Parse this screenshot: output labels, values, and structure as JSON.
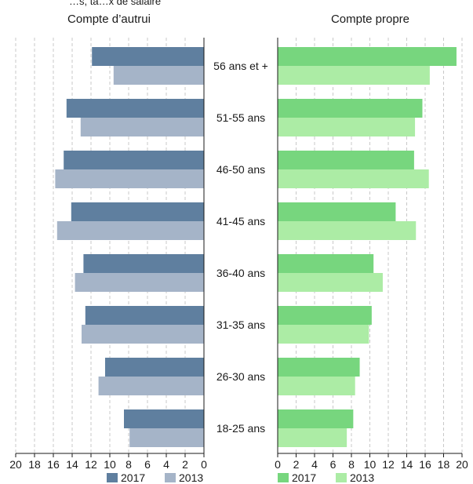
{
  "clipped_header": "…s, ta…x de salaire",
  "chart_data": [
    {
      "type": "bar",
      "orientation": "horizontal",
      "direction": "reversed",
      "title": "Compte d’autrui",
      "categories": [
        "56 ans et +",
        "51-55 ans",
        "46-50 ans",
        "41-45 ans",
        "36-40 ans",
        "31-35 ans",
        "26-30 ans",
        "18-25 ans"
      ],
      "series": [
        {
          "name": "2017",
          "color": "#5f7f9f",
          "values": [
            11.9,
            14.6,
            14.9,
            14.1,
            12.8,
            12.6,
            10.5,
            8.5
          ]
        },
        {
          "name": "2013",
          "color": "#a5b4c8",
          "values": [
            9.6,
            13.1,
            15.8,
            15.6,
            13.7,
            13.0,
            11.2,
            7.9
          ]
        }
      ],
      "xticks": [
        "20",
        "18",
        "16",
        "14",
        "12",
        "10",
        "8",
        "6",
        "4",
        "2",
        "0"
      ],
      "xlim": [
        0,
        20
      ],
      "grid": true,
      "legend": "bottom"
    },
    {
      "type": "bar",
      "orientation": "horizontal",
      "title": "Compte propre",
      "categories": [
        "56 ans et +",
        "51-55 ans",
        "46-50 ans",
        "41-45 ans",
        "36-40 ans",
        "31-35 ans",
        "26-30 ans",
        "18-25 ans"
      ],
      "series": [
        {
          "name": "2017",
          "color": "#77d67e",
          "values": [
            19.4,
            15.7,
            14.8,
            12.8,
            10.4,
            10.2,
            8.9,
            8.2
          ]
        },
        {
          "name": "2013",
          "color": "#aceca5",
          "values": [
            16.5,
            14.9,
            16.4,
            15.0,
            11.4,
            9.9,
            8.4,
            7.5
          ]
        }
      ],
      "xticks": [
        "0",
        "2",
        "4",
        "6",
        "8",
        "10",
        "12",
        "14",
        "16",
        "18",
        "20"
      ],
      "xlim": [
        0,
        20
      ],
      "grid": true,
      "legend": "bottom"
    }
  ]
}
